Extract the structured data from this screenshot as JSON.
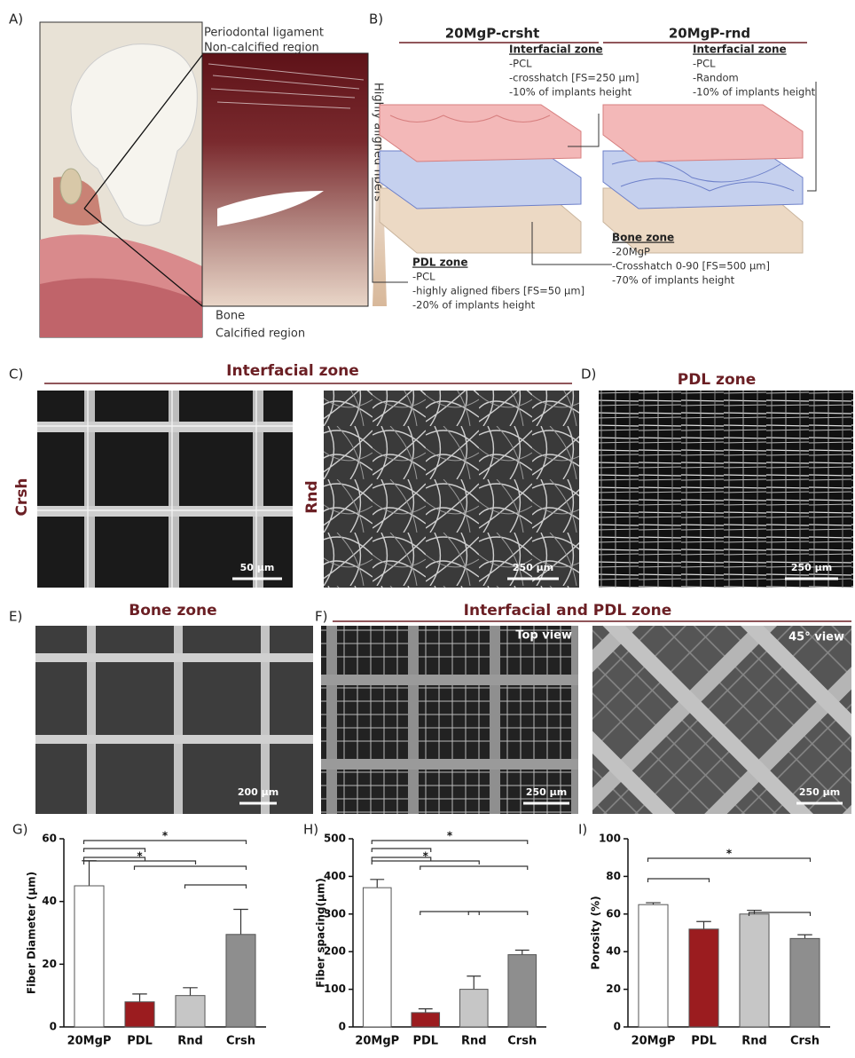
{
  "panel_a": {
    "label": "A)",
    "annotations": [
      "Periodontal ligament",
      "Non-calcified region",
      "Highly aligned fibers",
      "Bone",
      "Calcified region"
    ]
  },
  "panel_b": {
    "label": "B)",
    "titles": [
      "20MgP-crsht",
      "20MgP-rnd"
    ],
    "interfacial_crsht": {
      "heading": "Interfacial zone",
      "lines": [
        "-PCL",
        "-crosshatch [FS=250 μm]",
        "-10% of implants height"
      ]
    },
    "interfacial_rnd": {
      "heading": "Interfacial zone",
      "lines": [
        "-PCL",
        "-Random",
        "-10% of implants height"
      ]
    },
    "pdl": {
      "heading": "PDL zone",
      "lines": [
        "-PCL",
        "-highly aligned fibers [FS=50 μm]",
        "-20% of implants height"
      ]
    },
    "bone": {
      "heading": "Bone zone",
      "lines": [
        "-20MgP",
        "-Crosshatch 0-90 [FS=500 μm]",
        "-70% of implants height"
      ]
    }
  },
  "panel_c": {
    "label": "C)",
    "title": "Interfacial zone",
    "labels": [
      "Crsh",
      "Rnd"
    ],
    "scales": [
      "50 μm",
      "250 μm"
    ]
  },
  "panel_d": {
    "label": "D)",
    "title": "PDL zone",
    "scale": "250 μm"
  },
  "panel_e": {
    "label": "E)",
    "title": "Bone zone",
    "scale": "200 μm"
  },
  "panel_f": {
    "label": "F)",
    "title": "Interfacial and PDL zone",
    "views": [
      "Top view",
      "45° view"
    ],
    "scales": [
      "250 μm",
      "250 μm"
    ]
  },
  "chart_data": [
    {
      "type": "bar",
      "panel_label": "G)",
      "y_label": "Fiber Diameter (μm)",
      "categories": [
        "20MgP",
        "PDL",
        "Rnd",
        "Crsh"
      ],
      "values": [
        45,
        8,
        10,
        29.5
      ],
      "errors": [
        8,
        2.5,
        2.5,
        8
      ],
      "colors": [
        "#ffffff",
        "#9b1c1f",
        "#c6c6c6",
        "#8e8e8e"
      ],
      "ylim": [
        0,
        60
      ],
      "yticks": [
        0,
        20,
        40,
        60
      ],
      "annotations": [
        "*",
        "*"
      ]
    },
    {
      "type": "bar",
      "panel_label": "H)",
      "y_label": "Fiber spacing(μm)",
      "categories": [
        "20MgP",
        "PDL",
        "Rnd",
        "Crsh"
      ],
      "values": [
        370,
        38,
        100,
        192
      ],
      "errors": [
        22,
        10,
        35,
        12
      ],
      "colors": [
        "#ffffff",
        "#9b1c1f",
        "#c6c6c6",
        "#8e8e8e"
      ],
      "ylim": [
        0,
        500
      ],
      "yticks": [
        0,
        100,
        200,
        300,
        400,
        500
      ],
      "annotations": [
        "*",
        "*"
      ]
    },
    {
      "type": "bar",
      "panel_label": "I)",
      "y_label": "Porosity (%)",
      "categories": [
        "20MgP",
        "PDL",
        "Rnd",
        "Crsh"
      ],
      "values": [
        65,
        52,
        60,
        47
      ],
      "errors": [
        1,
        4,
        2,
        2
      ],
      "colors": [
        "#ffffff",
        "#9b1c1f",
        "#c6c6c6",
        "#8e8e8e"
      ],
      "ylim": [
        0,
        100
      ],
      "yticks": [
        0,
        20,
        40,
        60,
        80,
        100
      ],
      "annotations": [
        "*"
      ]
    }
  ]
}
